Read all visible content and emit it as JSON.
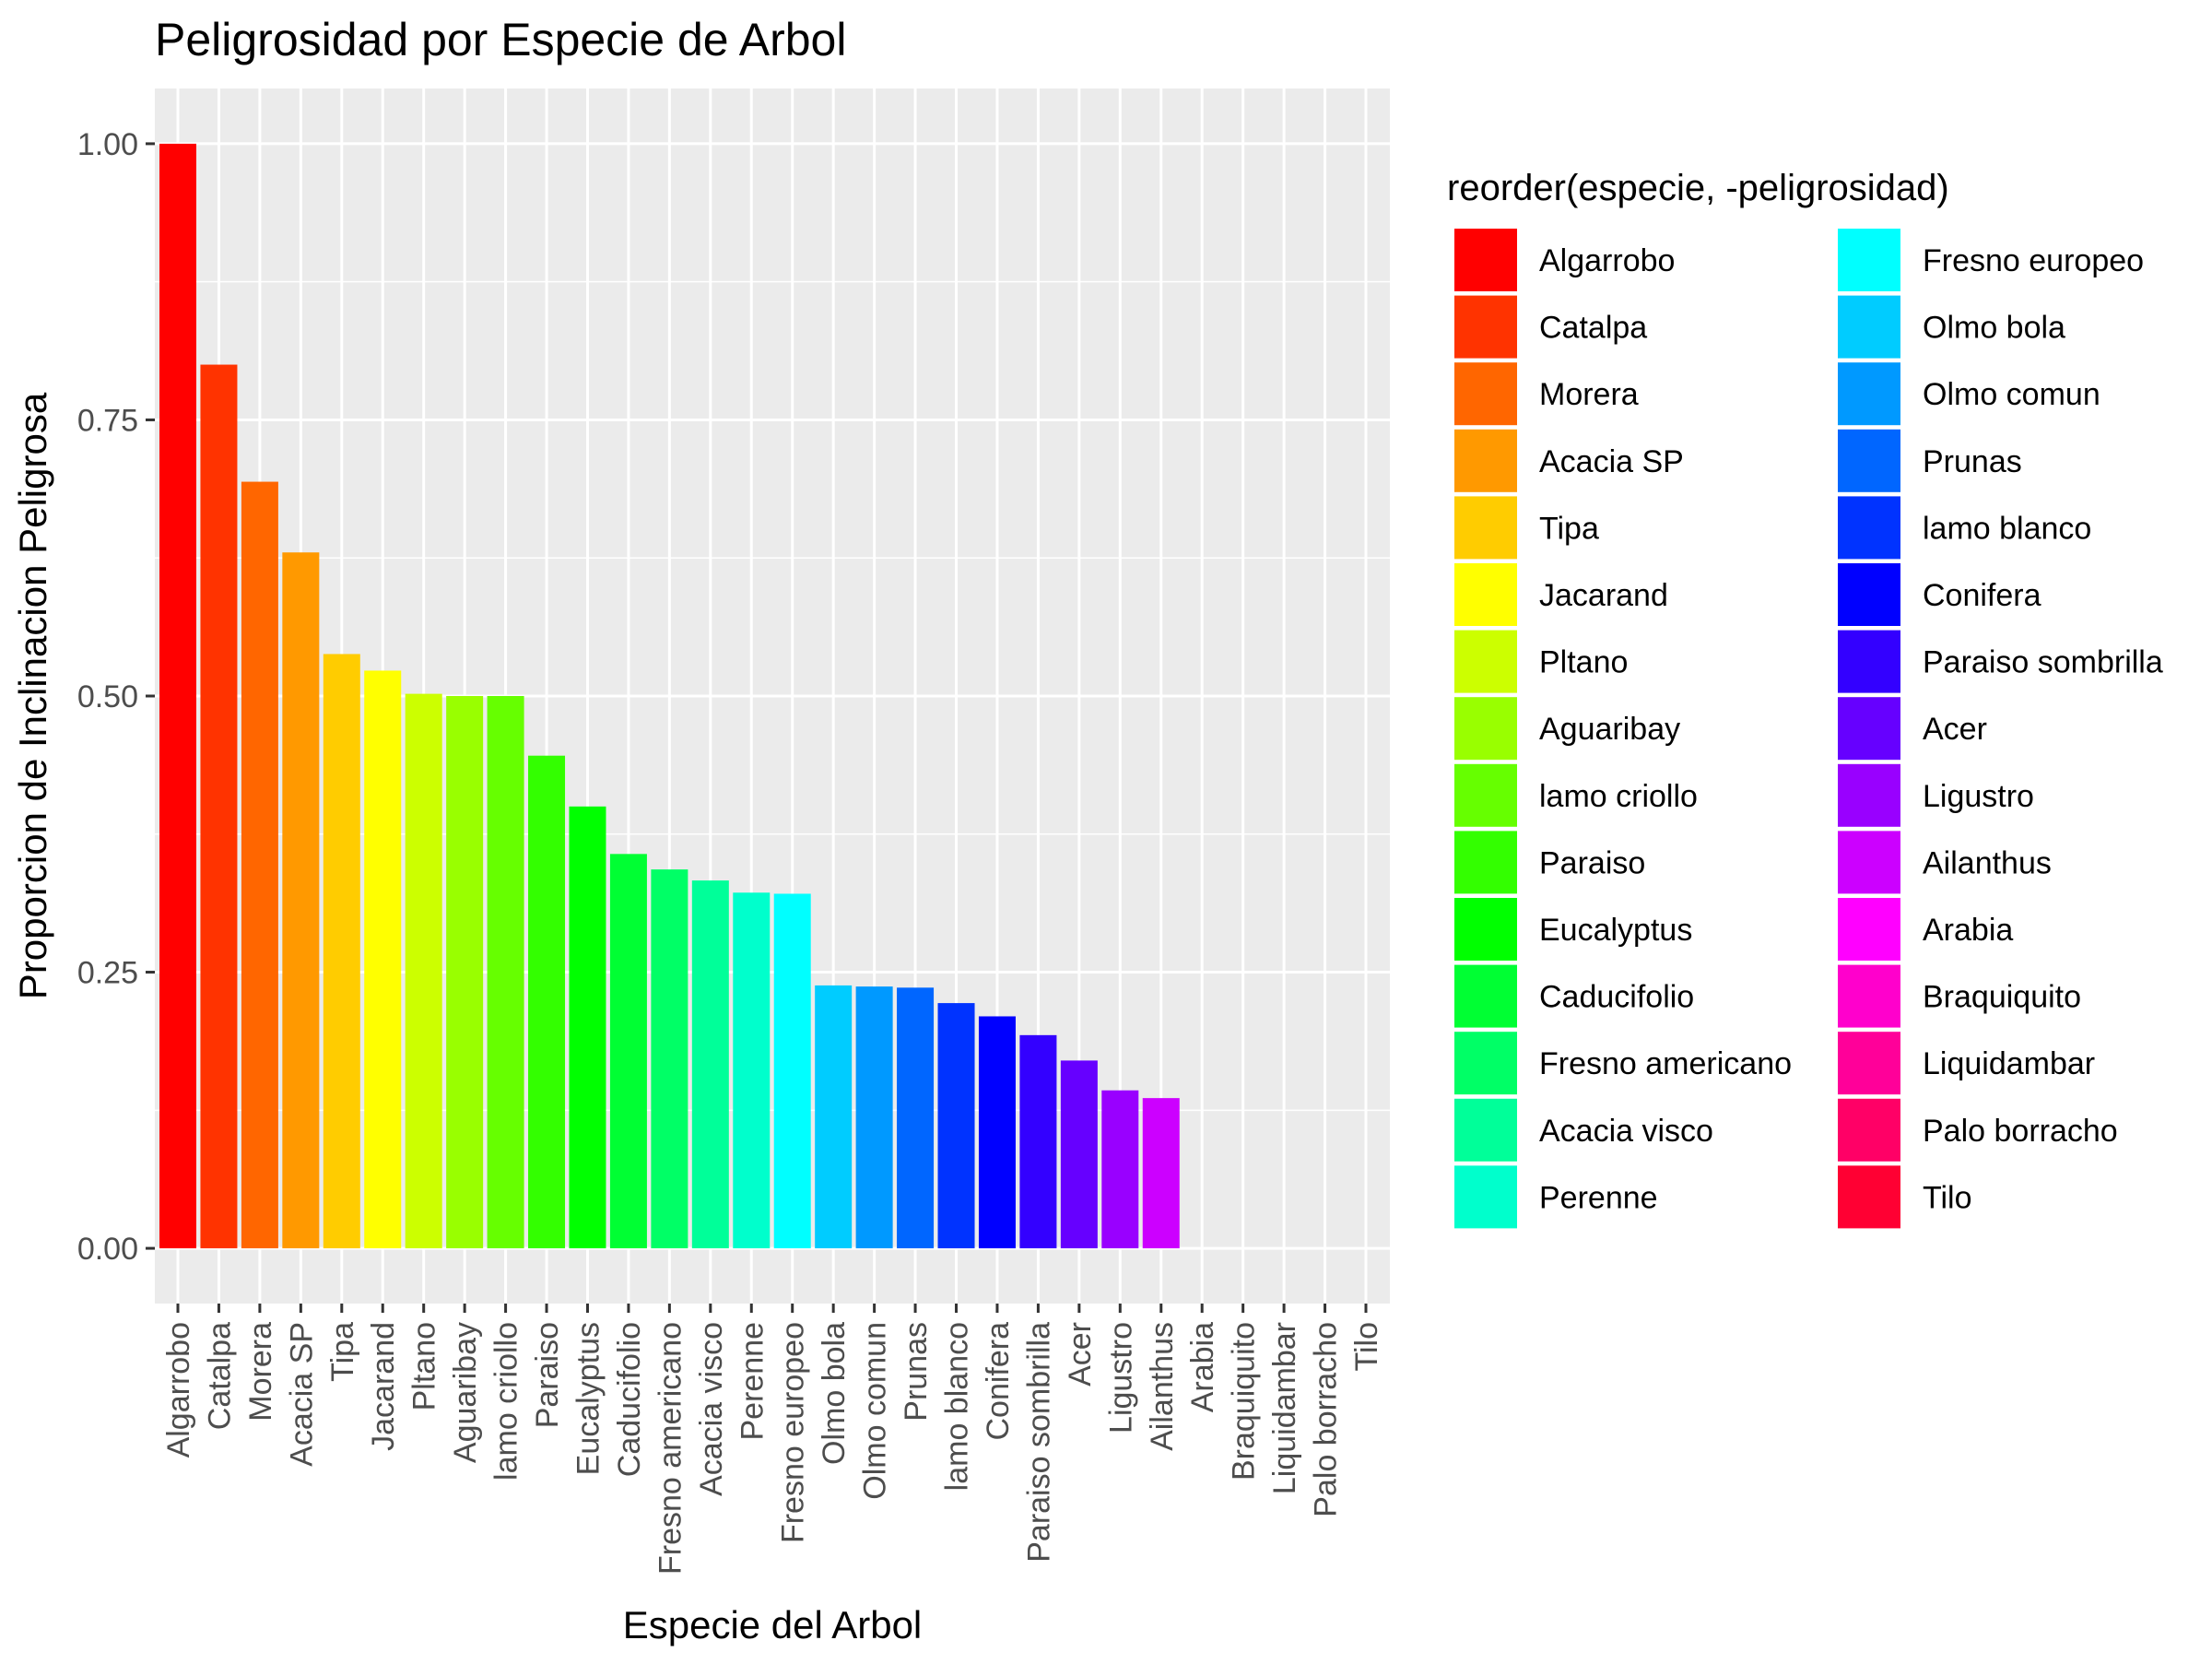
{
  "chart_data": {
    "type": "bar",
    "title": "Peligrosidad por Especie de Arbol",
    "xlabel": "Especie del Arbol",
    "ylabel": "Proporcion de Inclinacion Peligrosa",
    "ylim": [
      -0.05,
      1.05
    ],
    "yticks": [
      "0.00",
      "0.25",
      "0.50",
      "0.75",
      "1.00"
    ],
    "ytick_values": [
      0,
      0.25,
      0.5,
      0.75,
      1.0
    ],
    "grid": true,
    "legend_title": "reorder(especie, -peligrosidad)",
    "legend_position": "right",
    "categories": [
      "Algarrobo",
      "Catalpa",
      "Morera",
      "Acacia SP",
      "Tipa",
      "Jacarand",
      "Pltano",
      "Aguaribay",
      "lamo criollo",
      "Paraiso",
      "Eucalyptus",
      "Caducifolio",
      "Fresno americano",
      "Acacia visco",
      "Perenne",
      "Fresno europeo",
      "Olmo bola",
      "Olmo comun",
      "Prunas",
      "lamo blanco",
      "Conifera",
      "Paraiso sombrilla",
      "Acer",
      "Ligustro",
      "Ailanthus",
      "Arabia",
      "Braquiquito",
      "Liquidambar",
      "Palo borracho",
      "Tilo"
    ],
    "values": [
      1.0,
      0.8,
      0.694,
      0.63,
      0.538,
      0.523,
      0.502,
      0.5,
      0.5,
      0.446,
      0.4,
      0.357,
      0.343,
      0.333,
      0.322,
      0.321,
      0.238,
      0.237,
      0.236,
      0.222,
      0.21,
      0.193,
      0.17,
      0.143,
      0.136,
      0.0,
      0.0,
      0.0,
      0.0,
      0.0
    ],
    "colors": [
      "#FF0000",
      "#FF3300",
      "#FF6600",
      "#FF9900",
      "#FFCC00",
      "#FFFF00",
      "#CCFF00",
      "#99FF00",
      "#66FF00",
      "#33FF00",
      "#00FF00",
      "#00FF33",
      "#00FF66",
      "#00FF99",
      "#00FFCC",
      "#00FFFF",
      "#00CCFF",
      "#0099FF",
      "#0066FF",
      "#0033FF",
      "#0000FF",
      "#3300FF",
      "#6600FF",
      "#9900FF",
      "#CC00FF",
      "#FF00FF",
      "#FF00CC",
      "#FF0099",
      "#FF0066",
      "#FF0033"
    ]
  }
}
